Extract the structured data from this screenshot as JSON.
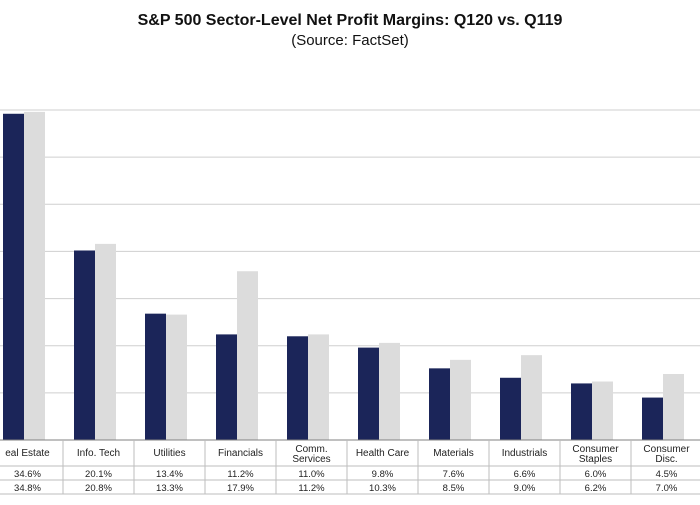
{
  "title": "S&P 500 Sector-Level Net Profit Margins: Q120 vs. Q119",
  "subtitle": "(Source: FactSet)",
  "colors": {
    "q120": "#1b2559",
    "q119": "#dcdcdc",
    "grid": "#cfcfcf",
    "border": "#bdbdbd"
  },
  "chart_data": {
    "type": "bar",
    "categories": [
      [
        "eal Estate"
      ],
      [
        "Info. Tech"
      ],
      [
        "Utilities"
      ],
      [
        "Financials"
      ],
      [
        "Comm.",
        "Services"
      ],
      [
        "Health Care"
      ],
      [
        "Materials"
      ],
      [
        "Industrials"
      ],
      [
        "Consumer",
        "Staples"
      ],
      [
        "Consumer",
        "Disc."
      ]
    ],
    "series": [
      {
        "values": [
          34.6,
          20.1,
          13.4,
          11.2,
          11.0,
          9.8,
          7.6,
          6.6,
          6.0,
          4.5
        ],
        "labels": [
          "34.6%",
          "20.1%",
          "13.4%",
          "11.2%",
          "11.0%",
          "9.8%",
          "7.6%",
          "6.6%",
          "6.0%",
          "4.5%"
        ]
      },
      {
        "values": [
          34.8,
          20.8,
          13.3,
          17.9,
          11.2,
          10.3,
          8.5,
          9.0,
          6.2,
          7.0
        ],
        "labels": [
          "34.8%",
          "20.8%",
          "13.3%",
          "17.9%",
          "11.2%",
          "10.3%",
          "8.5%",
          "9.0%",
          "6.2%",
          "7.0%"
        ]
      }
    ],
    "ylim": [
      0,
      35
    ],
    "grid": true
  }
}
